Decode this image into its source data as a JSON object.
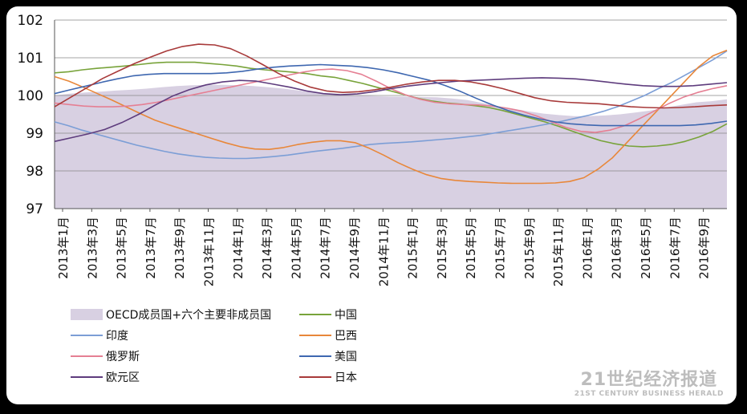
{
  "chart_data": {
    "type": "line",
    "title": "",
    "xlabel": "",
    "ylabel": "",
    "ylim": [
      97,
      102
    ],
    "yticks": [
      97,
      98,
      99,
      100,
      101,
      102
    ],
    "grid": true,
    "legend_position": "bottom-left",
    "x_tick_labels": [
      "2013年1月",
      "2013年3月",
      "2013年5月",
      "2013年7月",
      "2013年9月",
      "2013年11月",
      "2014年1月",
      "2014年3月",
      "2014年5月",
      "2014年7月",
      "2014年9月",
      "2014年11月",
      "2015年1月",
      "2015年3月",
      "2015年5月",
      "2015年7月",
      "2015年9月",
      "2015年11月",
      "2016年1月",
      "2016年3月",
      "2016年5月",
      "2016年7月",
      "2016年9月"
    ],
    "series": [
      {
        "name": "OECD成员国+六个主要非成员国",
        "style": "area",
        "color": "#d8d0e2",
        "values": [
          100.0,
          100.05,
          100.08,
          100.1,
          100.13,
          100.15,
          100.18,
          100.22,
          100.25,
          100.27,
          100.28,
          100.28,
          100.27,
          100.25,
          100.22,
          100.18,
          100.13,
          100.08,
          100.05,
          100.03,
          100.0,
          99.98,
          99.97,
          99.97,
          99.96,
          99.95,
          99.92,
          99.88,
          99.8,
          99.72,
          99.65,
          99.58,
          99.52,
          99.48,
          99.45,
          99.45,
          99.47,
          99.5,
          99.55,
          99.6,
          99.68,
          99.75,
          99.82,
          99.85,
          99.9
        ]
      },
      {
        "name": "中国",
        "color": "#78a33a",
        "values": [
          100.6,
          100.63,
          100.68,
          100.72,
          100.75,
          100.78,
          100.82,
          100.86,
          100.88,
          100.88,
          100.88,
          100.85,
          100.82,
          100.78,
          100.72,
          100.68,
          100.65,
          100.62,
          100.58,
          100.52,
          100.48,
          100.4,
          100.32,
          100.22,
          100.12,
          100.02,
          99.92,
          99.85,
          99.8,
          99.77,
          99.73,
          99.68,
          99.6,
          99.5,
          99.4,
          99.3,
          99.18,
          99.05,
          98.92,
          98.8,
          98.72,
          98.66,
          98.64,
          98.66,
          98.7,
          98.78,
          98.9,
          99.05,
          99.25
        ]
      },
      {
        "name": "印度",
        "color": "#7c9ed6",
        "values": [
          99.3,
          99.2,
          99.08,
          98.98,
          98.88,
          98.78,
          98.68,
          98.6,
          98.52,
          98.45,
          98.4,
          98.36,
          98.34,
          98.33,
          98.33,
          98.35,
          98.38,
          98.42,
          98.47,
          98.52,
          98.56,
          98.6,
          98.65,
          98.7,
          98.73,
          98.75,
          98.77,
          98.8,
          98.83,
          98.86,
          98.9,
          98.94,
          99.0,
          99.06,
          99.12,
          99.18,
          99.25,
          99.32,
          99.4,
          99.48,
          99.58,
          99.7,
          99.85,
          100.0,
          100.18,
          100.35,
          100.55,
          100.75,
          100.95,
          101.18
        ]
      },
      {
        "name": "巴西",
        "color": "#e8873a",
        "values": [
          100.5,
          100.38,
          100.22,
          100.05,
          99.88,
          99.7,
          99.52,
          99.35,
          99.22,
          99.1,
          98.98,
          98.86,
          98.74,
          98.64,
          98.58,
          98.57,
          98.62,
          98.7,
          98.76,
          98.8,
          98.8,
          98.75,
          98.6,
          98.42,
          98.22,
          98.05,
          97.9,
          97.8,
          97.75,
          97.72,
          97.7,
          97.68,
          97.67,
          97.67,
          97.67,
          97.68,
          97.72,
          97.82,
          98.05,
          98.35,
          98.75,
          99.15,
          99.55,
          99.95,
          100.35,
          100.75,
          101.05,
          101.2
        ]
      },
      {
        "name": "俄罗斯",
        "color": "#e57f93",
        "values": [
          99.8,
          99.76,
          99.72,
          99.7,
          99.7,
          99.72,
          99.76,
          99.82,
          99.9,
          99.98,
          100.06,
          100.14,
          100.22,
          100.3,
          100.38,
          100.46,
          100.54,
          100.62,
          100.68,
          100.7,
          100.66,
          100.56,
          100.38,
          100.18,
          100.02,
          99.9,
          99.82,
          99.78,
          99.76,
          99.75,
          99.72,
          99.66,
          99.58,
          99.45,
          99.3,
          99.15,
          99.05,
          99.02,
          99.08,
          99.2,
          99.38,
          99.58,
          99.78,
          99.95,
          100.08,
          100.18,
          100.26
        ]
      },
      {
        "name": "美国",
        "color": "#3e67b0",
        "values": [
          100.05,
          100.15,
          100.25,
          100.35,
          100.44,
          100.52,
          100.56,
          100.58,
          100.58,
          100.58,
          100.58,
          100.6,
          100.64,
          100.7,
          100.75,
          100.78,
          100.8,
          100.82,
          100.8,
          100.78,
          100.74,
          100.68,
          100.6,
          100.5,
          100.4,
          100.26,
          100.1,
          99.92,
          99.75,
          99.6,
          99.48,
          99.38,
          99.3,
          99.25,
          99.22,
          99.2,
          99.2,
          99.2,
          99.2,
          99.2,
          99.2,
          99.22,
          99.26,
          99.32
        ]
      },
      {
        "name": "欧元区",
        "color": "#5e3c7d",
        "values": [
          98.78,
          98.88,
          98.98,
          99.1,
          99.28,
          99.5,
          99.75,
          99.98,
          100.15,
          100.28,
          100.36,
          100.4,
          100.38,
          100.3,
          100.22,
          100.12,
          100.05,
          100.02,
          100.04,
          100.1,
          100.18,
          100.25,
          100.3,
          100.34,
          100.38,
          100.4,
          100.42,
          100.44,
          100.46,
          100.47,
          100.46,
          100.44,
          100.4,
          100.35,
          100.3,
          100.26,
          100.24,
          100.24,
          100.26,
          100.3,
          100.34
        ]
      },
      {
        "name": "日本",
        "color": "#a83a3a",
        "values": [
          99.7,
          99.95,
          100.2,
          100.45,
          100.65,
          100.85,
          101.02,
          101.18,
          101.3,
          101.36,
          101.34,
          101.24,
          101.05,
          100.82,
          100.58,
          100.38,
          100.22,
          100.12,
          100.08,
          100.1,
          100.15,
          100.22,
          100.3,
          100.36,
          100.4,
          100.4,
          100.36,
          100.28,
          100.18,
          100.06,
          99.94,
          99.86,
          99.82,
          99.8,
          99.78,
          99.74,
          99.7,
          99.68,
          99.67,
          99.68,
          99.7,
          99.73,
          99.75
        ]
      }
    ]
  },
  "watermark": {
    "main": "21世纪经济报道",
    "sub": "21ST CENTURY BUSINESS HERALD"
  }
}
